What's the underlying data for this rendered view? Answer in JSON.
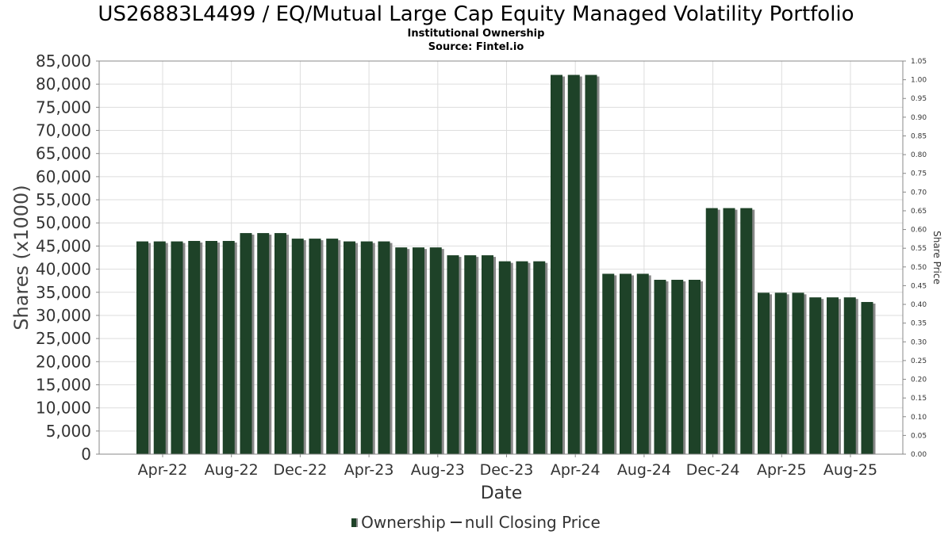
{
  "header": {
    "title": "US26883L4499 / EQ/Mutual Large Cap Equity Managed Volatility Portfolio",
    "subtitle": "Institutional Ownership",
    "source": "Source: Fintel.io"
  },
  "legend": {
    "ownership_label": "Ownership",
    "price_label": "null Closing Price"
  },
  "colors": {
    "bar": "#1e4228",
    "bar_shadow": "#888888",
    "grid": "#dddddd"
  },
  "chart_data": {
    "type": "bar",
    "xlabel": "Date",
    "ylabel": "Shares (x1000)",
    "y2label": "Share Price",
    "ylim": [
      0,
      85000
    ],
    "y2lim": [
      0,
      1.05
    ],
    "yticks": [
      "0",
      "5,000",
      "10,000",
      "15,000",
      "20,000",
      "25,000",
      "30,000",
      "35,000",
      "40,000",
      "45,000",
      "50,000",
      "55,000",
      "60,000",
      "65,000",
      "70,000",
      "75,000",
      "80,000",
      "85,000"
    ],
    "y2ticks": [
      "0.00",
      "0.05",
      "0.10",
      "0.15",
      "0.20",
      "0.25",
      "0.30",
      "0.35",
      "0.40",
      "0.45",
      "0.50",
      "0.55",
      "0.60",
      "0.65",
      "0.70",
      "0.75",
      "0.80",
      "0.85",
      "0.90",
      "0.95",
      "1.00",
      "1.05"
    ],
    "xticks": [
      "Apr-22",
      "Aug-22",
      "Dec-22",
      "Apr-23",
      "Aug-23",
      "Dec-23",
      "Apr-24",
      "Aug-24",
      "Dec-24",
      "Apr-25",
      "Aug-25"
    ],
    "grid": true,
    "legend_position": "bottom",
    "series": [
      {
        "name": "Ownership",
        "values": [
          46000,
          46000,
          46000,
          46100,
          46100,
          46100,
          47800,
          47800,
          47800,
          46600,
          46600,
          46600,
          46000,
          46000,
          46000,
          44700,
          44700,
          44700,
          43000,
          43000,
          43000,
          41700,
          41700,
          41700,
          82000,
          82000,
          82000,
          39000,
          39000,
          39000,
          37700,
          37700,
          37700,
          53200,
          53200,
          53200,
          34900,
          34900,
          34900,
          33900,
          33900,
          33900,
          32900
        ]
      }
    ]
  }
}
